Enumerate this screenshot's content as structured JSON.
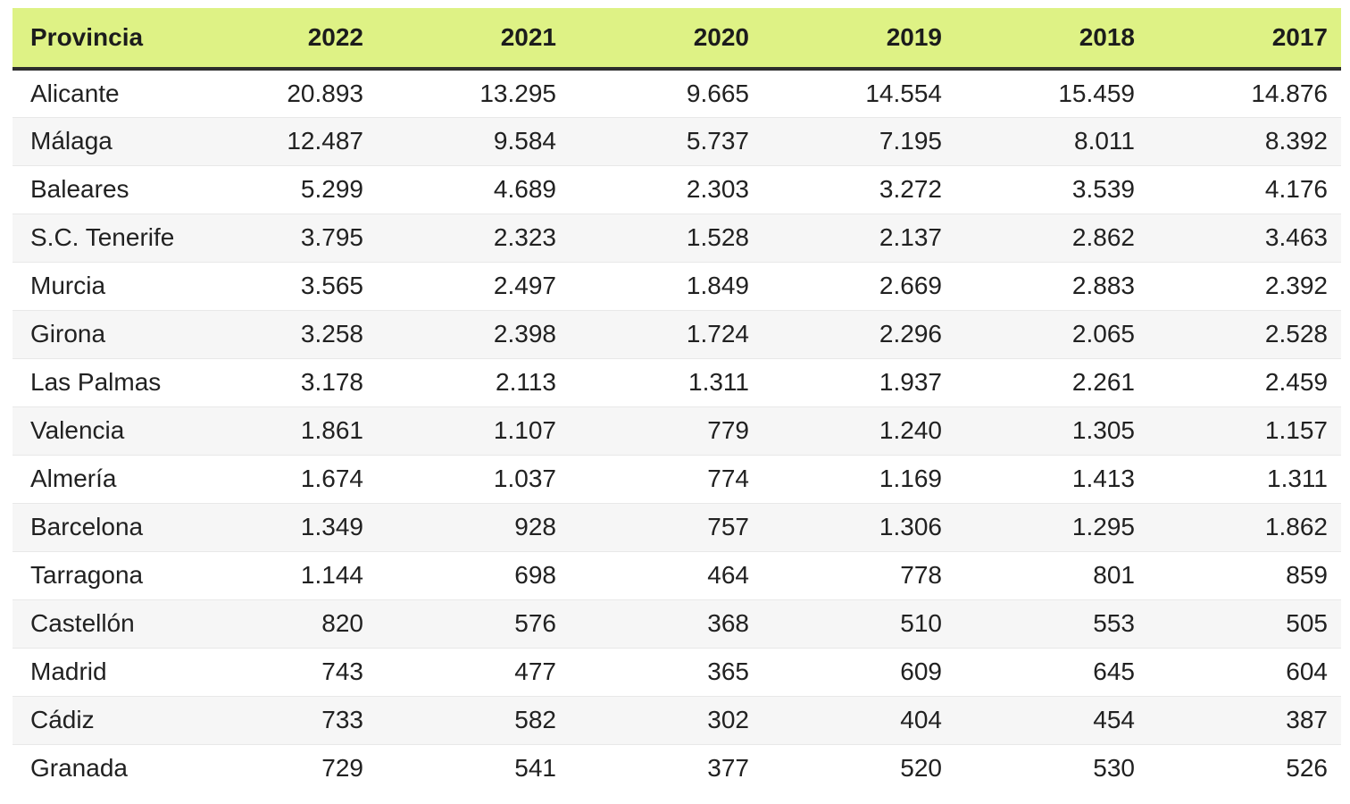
{
  "accent_color": "#def285",
  "header_rule_color": "#2d2d2d",
  "zebra_row_color": "#f6f6f6",
  "chart_data": {
    "type": "table",
    "title": "",
    "columns": [
      "Provincia",
      "2022",
      "2021",
      "2020",
      "2019",
      "2018",
      "2017"
    ],
    "rows": [
      {
        "label": "Alicante",
        "values": [
          "20.893",
          "13.295",
          "9.665",
          "14.554",
          "15.459",
          "14.876"
        ]
      },
      {
        "label": "Málaga",
        "values": [
          "12.487",
          "9.584",
          "5.737",
          "7.195",
          "8.011",
          "8.392"
        ]
      },
      {
        "label": "Baleares",
        "values": [
          "5.299",
          "4.689",
          "2.303",
          "3.272",
          "3.539",
          "4.176"
        ]
      },
      {
        "label": "S.C. Tenerife",
        "values": [
          "3.795",
          "2.323",
          "1.528",
          "2.137",
          "2.862",
          "3.463"
        ]
      },
      {
        "label": "Murcia",
        "values": [
          "3.565",
          "2.497",
          "1.849",
          "2.669",
          "2.883",
          "2.392"
        ]
      },
      {
        "label": "Girona",
        "values": [
          "3.258",
          "2.398",
          "1.724",
          "2.296",
          "2.065",
          "2.528"
        ]
      },
      {
        "label": "Las Palmas",
        "values": [
          "3.178",
          "2.113",
          "1.311",
          "1.937",
          "2.261",
          "2.459"
        ]
      },
      {
        "label": "Valencia",
        "values": [
          "1.861",
          "1.107",
          "779",
          "1.240",
          "1.305",
          "1.157"
        ]
      },
      {
        "label": "Almería",
        "values": [
          "1.674",
          "1.037",
          "774",
          "1.169",
          "1.413",
          "1.311"
        ]
      },
      {
        "label": "Barcelona",
        "values": [
          "1.349",
          "928",
          "757",
          "1.306",
          "1.295",
          "1.862"
        ]
      },
      {
        "label": "Tarragona",
        "values": [
          "1.144",
          "698",
          "464",
          "778",
          "801",
          "859"
        ]
      },
      {
        "label": "Castellón",
        "values": [
          "820",
          "576",
          "368",
          "510",
          "553",
          "505"
        ]
      },
      {
        "label": "Madrid",
        "values": [
          "743",
          "477",
          "365",
          "609",
          "645",
          "604"
        ]
      },
      {
        "label": "Cádiz",
        "values": [
          "733",
          "582",
          "302",
          "404",
          "454",
          "387"
        ]
      },
      {
        "label": "Granada",
        "values": [
          "729",
          "541",
          "377",
          "520",
          "530",
          "526"
        ]
      }
    ]
  }
}
